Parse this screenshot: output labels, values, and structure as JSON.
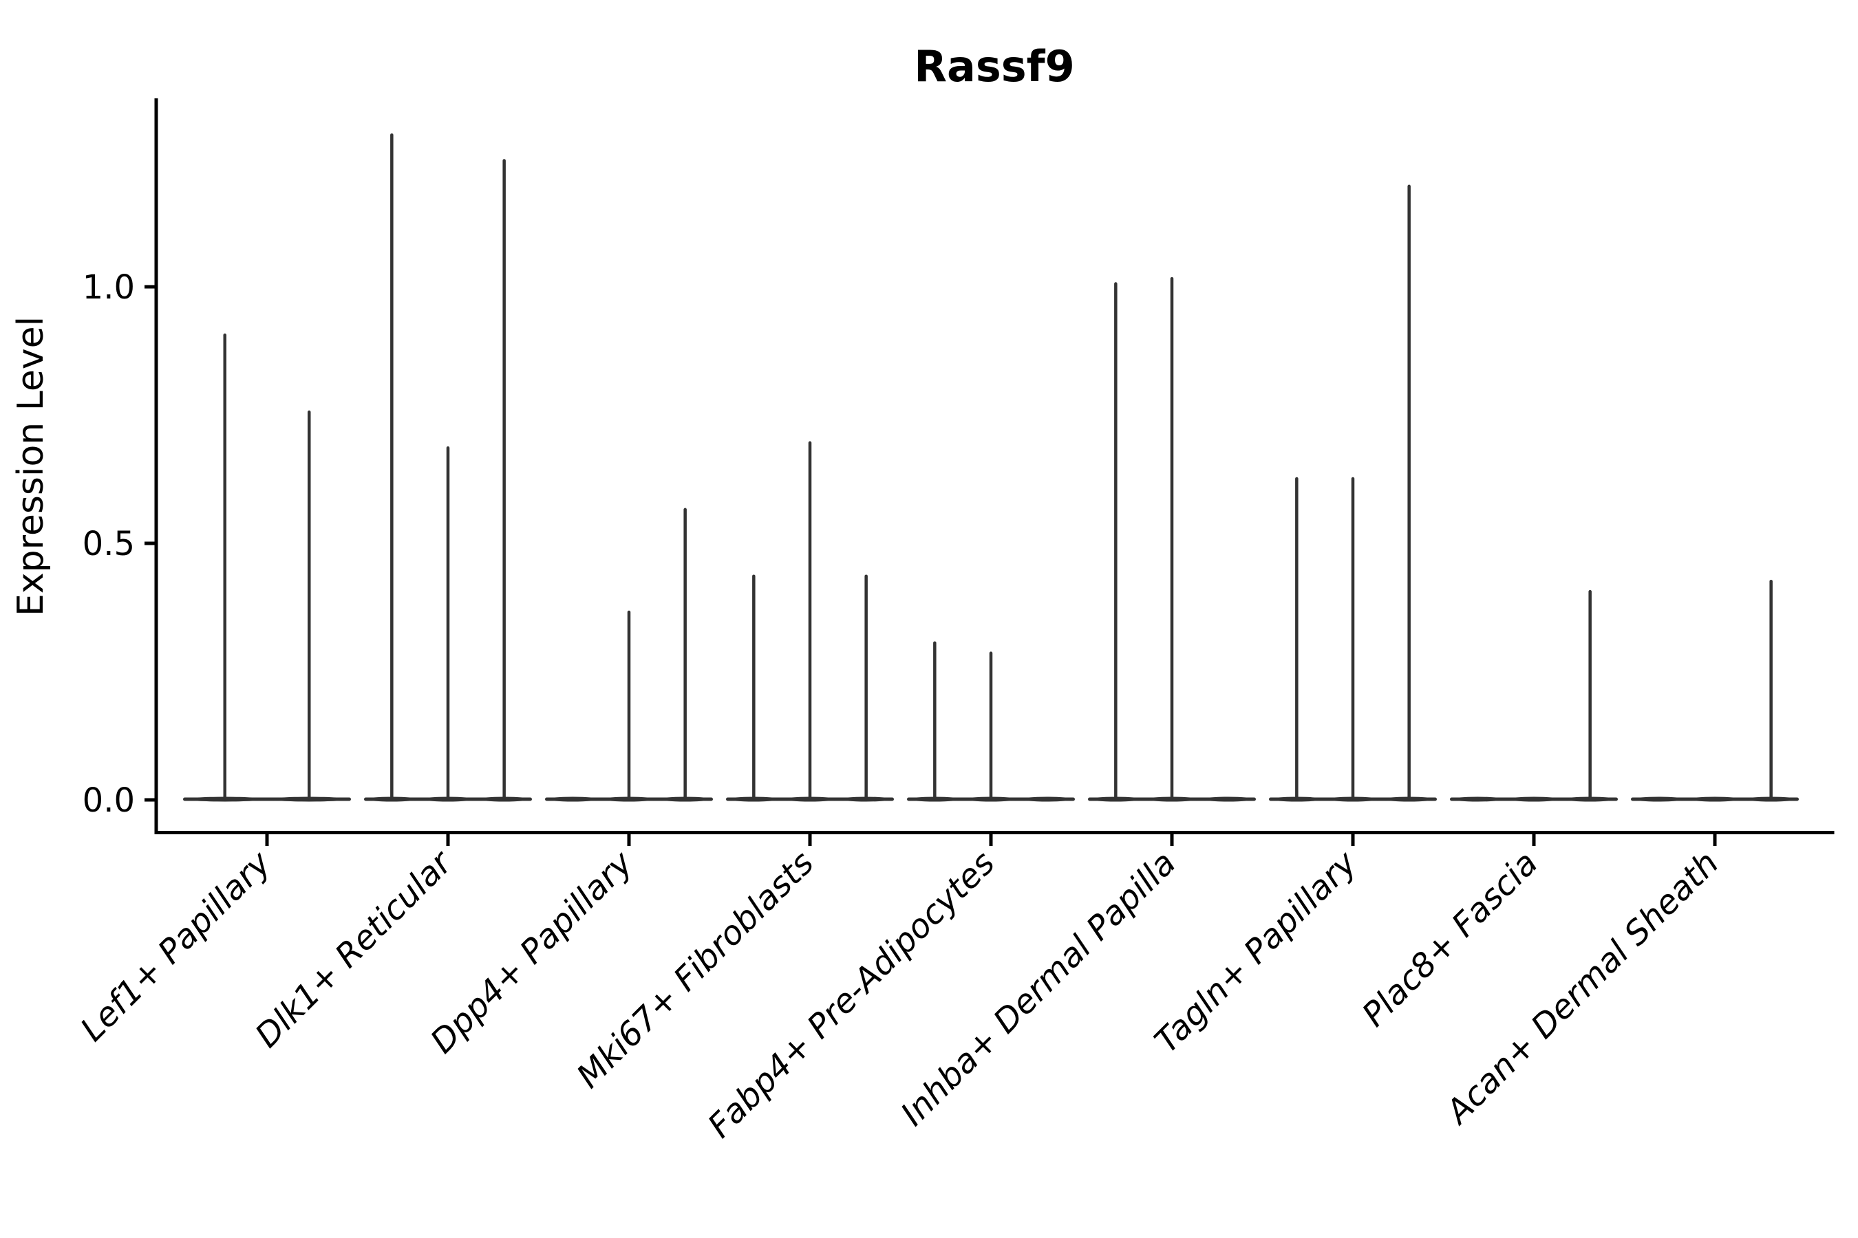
{
  "figure": {
    "background": "#ffffff"
  },
  "chart_data": {
    "type": "violin",
    "title": "Rassf9",
    "xlabel": "",
    "ylabel": "Expression Level",
    "yticks": [
      0.0,
      0.5,
      1.0
    ],
    "ytick_labels": [
      "0.0",
      "0.5",
      "1.0"
    ],
    "ylim": [
      -0.06,
      1.37
    ],
    "grid": false,
    "legend": null,
    "categories": [
      "Lef1+ Papillary",
      "Dlk1+ Reticular",
      "Dpp4+ Papillary",
      "Mki67+ Fibroblasts",
      "Fabp4+ Pre-Adipocytes",
      "Inhba+ Dermal Papilla",
      "Tagln+ Papillary",
      "Plac8+ Fascia",
      "Acan+ Dermal Sheath"
    ],
    "groups": [
      {
        "category": "Lef1+ Papillary",
        "violin_maxima": [
          0.91,
          0.76
        ]
      },
      {
        "category": "Dlk1+ Reticular",
        "violin_maxima": [
          1.3,
          0.69,
          1.25
        ]
      },
      {
        "category": "Dpp4+ Papillary",
        "violin_maxima": [
          0,
          0.37,
          0.57
        ]
      },
      {
        "category": "Mki67+ Fibroblasts",
        "violin_maxima": [
          0.44,
          0.7,
          0.44
        ]
      },
      {
        "category": "Fabp4+ Pre-Adipocytes",
        "violin_maxima": [
          0.31,
          0.29,
          0
        ]
      },
      {
        "category": "Inhba+ Dermal Papilla",
        "violin_maxima": [
          1.01,
          1.02,
          0
        ]
      },
      {
        "category": "Tagln+ Papillary",
        "violin_maxima": [
          0.63,
          0.63,
          1.2
        ]
      },
      {
        "category": "Plac8+ Fascia",
        "violin_maxima": [
          0,
          0,
          0.41
        ]
      },
      {
        "category": "Acan+ Dermal Sheath",
        "violin_maxima": [
          0,
          0,
          0.43
        ]
      }
    ],
    "colors": {
      "violin": "#333333",
      "axis": "#000000",
      "text": "#000000"
    }
  }
}
